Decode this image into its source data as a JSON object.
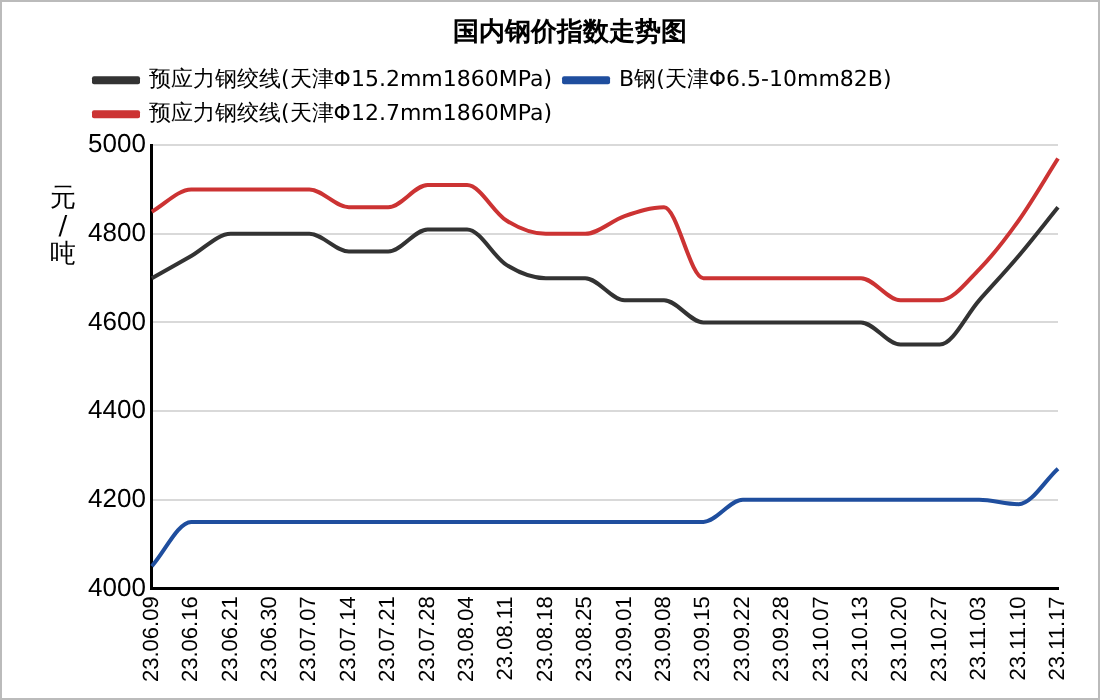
{
  "chart_data": {
    "type": "line",
    "title": "国内钢价指数走势图",
    "ylabel": "元/吨",
    "categories": [
      "23.06.09",
      "23.06.16",
      "23.06.21",
      "23.06.30",
      "23.07.07",
      "23.07.14",
      "23.07.21",
      "23.07.28",
      "23.08.04",
      "23.08.11",
      "23.08.18",
      "23.08.25",
      "23.09.01",
      "23.09.08",
      "23.09.15",
      "23.09.22",
      "23.09.28",
      "23.10.07",
      "23.10.13",
      "23.10.20",
      "23.10.27",
      "23.11.03",
      "23.11.10",
      "23.11.17"
    ],
    "series": [
      {
        "name": "预应力钢绞线(天津Φ15.2mm1860MPa)",
        "color": "#333333",
        "values": [
          4700,
          4750,
          4800,
          4800,
          4800,
          4760,
          4760,
          4810,
          4810,
          4730,
          4700,
          4700,
          4650,
          4650,
          4600,
          4600,
          4600,
          4600,
          4600,
          4550,
          4550,
          4650,
          4750,
          4860
        ]
      },
      {
        "name": "B钢(天津Φ6.5-10mm82B)",
        "color": "#1f4e9e",
        "values": [
          4050,
          4150,
          4150,
          4150,
          4150,
          4150,
          4150,
          4150,
          4150,
          4150,
          4150,
          4150,
          4150,
          4150,
          4150,
          4200,
          4200,
          4200,
          4200,
          4200,
          4200,
          4200,
          4190,
          4270
        ]
      },
      {
        "name": "预应力钢绞线(天津Φ12.7mm1860MPa)",
        "color": "#cc3333",
        "values": [
          4850,
          4900,
          4900,
          4900,
          4900,
          4860,
          4860,
          4910,
          4910,
          4830,
          4800,
          4800,
          4840,
          4860,
          4700,
          4700,
          4700,
          4700,
          4700,
          4650,
          4650,
          4720,
          4830,
          4970
        ]
      }
    ],
    "ylim": [
      4000,
      5000
    ],
    "yticks": [
      4000,
      4200,
      4400,
      4600,
      4800,
      5000
    ],
    "grid": "y",
    "legend": "top",
    "marker": "none",
    "line_style": "solid"
  }
}
